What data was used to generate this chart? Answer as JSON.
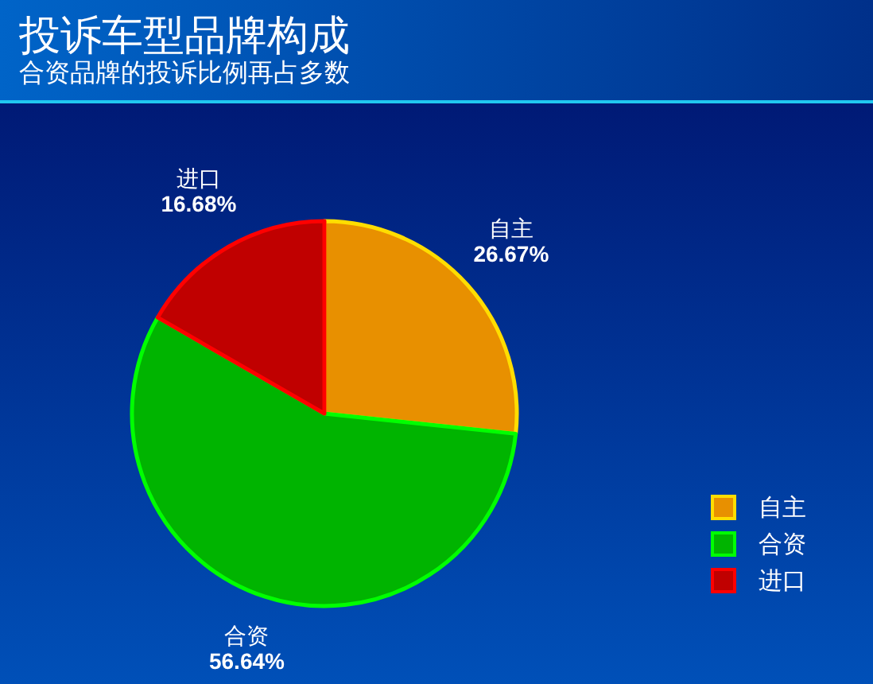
{
  "chart_data": {
    "type": "pie",
    "title": "投诉车型品牌构成",
    "subtitle": "合资品牌的投诉比例再占多数",
    "categories": [
      "自主",
      "合资",
      "进口"
    ],
    "values": [
      26.67,
      56.64,
      16.68
    ],
    "colors": [
      "#e89000",
      "#00b400",
      "#c00000"
    ],
    "value_labels": [
      "26.67%",
      "56.64%",
      "16.68%"
    ],
    "legend": "bottom right"
  }
}
